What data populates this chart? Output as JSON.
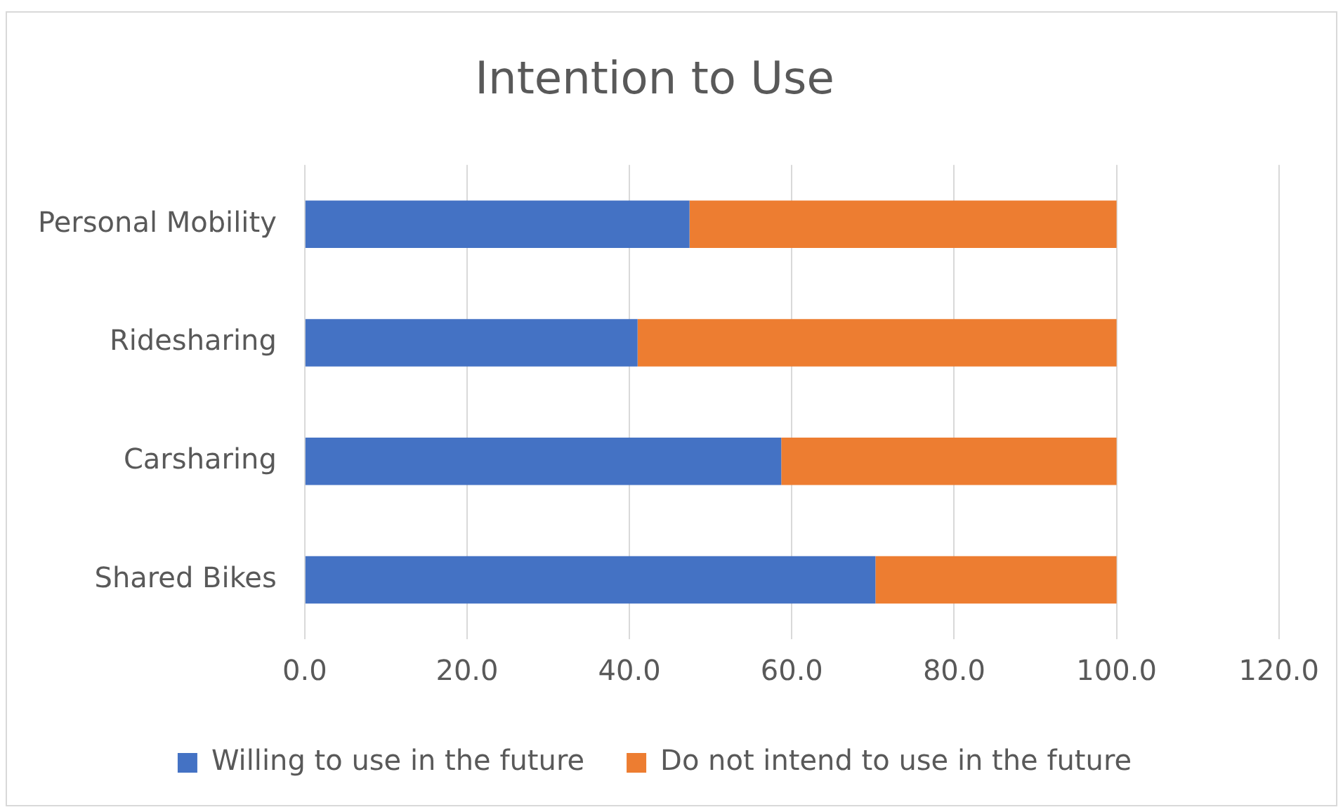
{
  "chart_data": {
    "type": "bar",
    "orientation": "horizontal",
    "stacked": true,
    "title": "Intention to Use",
    "categories": [
      "Personal Mobility",
      "Ridesharing",
      "Carsharing",
      "Shared Bikes"
    ],
    "series": [
      {
        "name": "Willing to use in the future",
        "color": "#4472c4",
        "values": [
          47.4,
          41.0,
          58.7,
          70.3
        ]
      },
      {
        "name": "Do not intend to use in the future",
        "color": "#ed7d31",
        "values": [
          52.6,
          59.0,
          41.3,
          29.7
        ]
      }
    ],
    "xlim": [
      0,
      120
    ],
    "xticks": [
      {
        "value": 0,
        "label": "0.0"
      },
      {
        "value": 20,
        "label": "20.0"
      },
      {
        "value": 40,
        "label": "40.0"
      },
      {
        "value": 60,
        "label": "60.0"
      },
      {
        "value": 80,
        "label": "80.0"
      },
      {
        "value": 100,
        "label": "100.0"
      },
      {
        "value": 120,
        "label": "120.0"
      }
    ],
    "grid": "x",
    "legend": "bottom"
  }
}
